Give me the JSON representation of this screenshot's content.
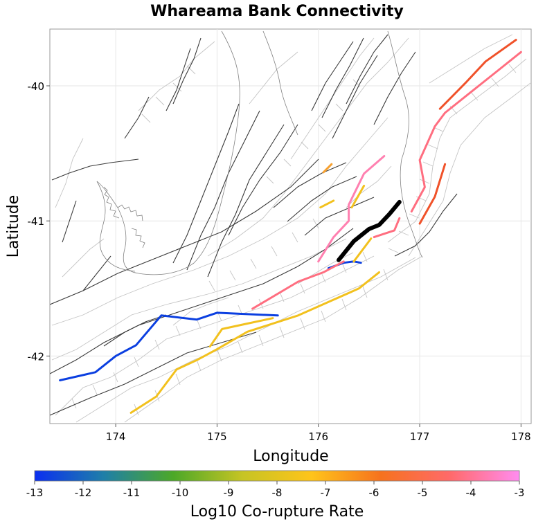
{
  "title": "Whareama Bank Connectivity",
  "xaxis": {
    "label": "Longitude",
    "range": [
      173.35,
      178.1
    ],
    "ticks": [
      "174",
      "175",
      "176",
      "177",
      "178"
    ]
  },
  "yaxis": {
    "label": "Latitude",
    "range": [
      -42.5,
      -39.58
    ],
    "ticks": [
      "-40",
      "-41",
      "-42"
    ]
  },
  "colorbar": {
    "label": "Log10 Co-rupture Rate",
    "ticks": [
      "-13",
      "-12",
      "-11",
      "-10",
      "-9",
      "-8",
      "-7",
      "-6",
      "-5",
      "-4",
      "-3"
    ],
    "range": [
      -13,
      -3
    ],
    "colors": [
      "#0b2ff0",
      "#1f7fa8",
      "#4ca828",
      "#c6c424",
      "#ffc41a",
      "#f6721e",
      "#ff6a6a",
      "#ff8cf0"
    ]
  },
  "chart_data": {
    "type": "map",
    "title": "Whareama Bank Connectivity",
    "xlabel": "Longitude",
    "ylabel": "Latitude",
    "xlim": [
      173.35,
      178.1
    ],
    "ylim": [
      -42.5,
      -39.58
    ],
    "grid": true,
    "target_fault": {
      "color": "#000000",
      "points": [
        [
          176.2,
          -41.29
        ],
        [
          176.35,
          -41.15
        ],
        [
          176.5,
          -41.06
        ],
        [
          176.6,
          -41.03
        ],
        [
          176.7,
          -40.95
        ],
        [
          176.8,
          -40.86
        ]
      ]
    },
    "ruptures": [
      {
        "log10_rate": -13,
        "color": "#0b3fe0",
        "points": [
          [
            173.45,
            -42.18
          ],
          [
            173.8,
            -42.12
          ],
          [
            174.0,
            -42.0
          ],
          [
            174.2,
            -41.92
          ],
          [
            174.45,
            -41.7
          ],
          [
            174.8,
            -41.73
          ],
          [
            175.0,
            -41.68
          ],
          [
            175.6,
            -41.7
          ]
        ]
      },
      {
        "log10_rate": -13,
        "color": "#0b3fe0",
        "points": [
          [
            176.1,
            -41.35
          ],
          [
            176.25,
            -41.31
          ],
          [
            176.35,
            -41.3
          ],
          [
            176.42,
            -41.31
          ]
        ]
      },
      {
        "log10_rate": -8,
        "color": "#f2c11e",
        "points": [
          [
            174.15,
            -42.42
          ],
          [
            174.4,
            -42.3
          ],
          [
            174.6,
            -42.1
          ],
          [
            174.8,
            -42.03
          ],
          [
            175.0,
            -41.95
          ],
          [
            175.3,
            -41.82
          ],
          [
            175.8,
            -41.7
          ],
          [
            176.1,
            -41.6
          ],
          [
            176.4,
            -41.5
          ],
          [
            176.6,
            -41.38
          ]
        ]
      },
      {
        "log10_rate": -8,
        "color": "#f2c11e",
        "points": [
          [
            174.93,
            -41.93
          ],
          [
            175.05,
            -41.8
          ],
          [
            175.3,
            -41.76
          ],
          [
            175.55,
            -41.72
          ]
        ]
      },
      {
        "log10_rate": -8,
        "color": "#f2c11e",
        "points": [
          [
            176.02,
            -40.9
          ],
          [
            176.15,
            -40.85
          ]
        ]
      },
      {
        "log10_rate": -8,
        "color": "#f2c11e",
        "points": [
          [
            176.33,
            -40.9
          ],
          [
            176.45,
            -40.74
          ]
        ]
      },
      {
        "log10_rate": -8,
        "color": "#f2c11e",
        "points": [
          [
            176.35,
            -41.3
          ],
          [
            176.52,
            -41.13
          ]
        ]
      },
      {
        "log10_rate": -7,
        "color": "#f7a130",
        "points": [
          [
            176.05,
            -40.64
          ],
          [
            176.13,
            -40.58
          ]
        ]
      },
      {
        "log10_rate": -5,
        "color": "#f0522a",
        "points": [
          [
            177.2,
            -40.17
          ],
          [
            177.45,
            -39.98
          ],
          [
            177.65,
            -39.82
          ],
          [
            177.95,
            -39.66
          ]
        ]
      },
      {
        "log10_rate": -5,
        "color": "#f0522a",
        "points": [
          [
            177.0,
            -41.02
          ],
          [
            177.15,
            -40.82
          ],
          [
            177.25,
            -40.58
          ]
        ]
      },
      {
        "log10_rate": -4.3,
        "color": "#ff6e80",
        "points": [
          [
            175.35,
            -41.65
          ],
          [
            175.8,
            -41.45
          ],
          [
            176.05,
            -41.38
          ],
          [
            176.25,
            -41.3
          ]
        ]
      },
      {
        "log10_rate": -4.3,
        "color": "#ff6e80",
        "points": [
          [
            176.92,
            -40.93
          ],
          [
            177.05,
            -40.75
          ],
          [
            177.0,
            -40.55
          ],
          [
            177.15,
            -40.3
          ],
          [
            177.25,
            -40.2
          ],
          [
            177.5,
            -40.05
          ],
          [
            177.75,
            -39.9
          ],
          [
            178.0,
            -39.75
          ]
        ]
      },
      {
        "log10_rate": -4.3,
        "color": "#ff6e80",
        "points": [
          [
            176.55,
            -41.12
          ],
          [
            176.75,
            -41.07
          ],
          [
            176.8,
            -40.98
          ]
        ]
      },
      {
        "log10_rate": -3.7,
        "color": "#ff80b0",
        "points": [
          [
            176.0,
            -41.3
          ],
          [
            176.15,
            -41.12
          ],
          [
            176.3,
            -41.0
          ],
          [
            176.3,
            -40.88
          ],
          [
            176.45,
            -40.65
          ],
          [
            176.65,
            -40.52
          ]
        ]
      }
    ]
  }
}
